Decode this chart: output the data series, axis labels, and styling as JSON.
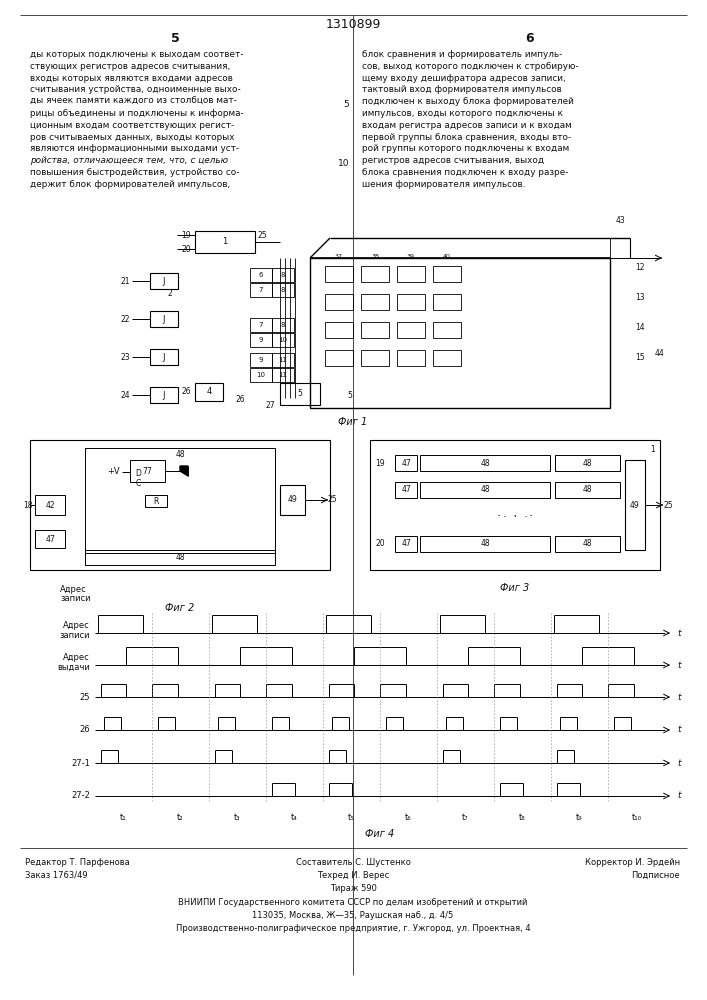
{
  "title": "1310899",
  "page_left": "5",
  "page_right": "6",
  "bg_color": "#ffffff",
  "text_color": "#111111",
  "left_column_text": [
    "ды которых подключены к выходам соответ-",
    "ствующих регистров адресов считывания,",
    "входы которых являются входами адресов",
    "считывания устройства, одноименные выхо-",
    "ды ячеек памяти каждого из столбцов мат-",
    "рицы объединены и подключены к информа-",
    "ционным входам соответствующих регист-",
    "ров считываемых данных, выходы которых",
    "являются информационными выходами уст-",
    "ройства, отличающееся тем, что, с целью",
    "повышения быстродействия, устройство со-",
    "держит блок формирователей импульсов,"
  ],
  "right_column_text": [
    "блок сравнения и формирователь импуль-",
    "сов, выход которого подключен к стробирую-",
    "щему входу дешифратора адресов записи,",
    "тактовый вход формирователя импульсов",
    "подключен к выходу блока формирователей",
    "импульсов, входы которого подключены к",
    "входам регистра адресов записи и к входам",
    "первой группы блока сравнения, входы вто-",
    "рой группы которого подключены к входам",
    "регистров адресов считывания, выход",
    "блока сравнения подключен к входу разре-",
    "шения формирователя импульсов."
  ],
  "footer_col1_l1": "Редактор Т. Парфенова",
  "footer_col1_l2": "Заказ 1763/49",
  "footer_col2_l1": "Составитель С. Шустенко",
  "footer_col2_l2": "Техред И. Верес",
  "footer_col2_l3": "Тираж 590",
  "footer_col3_l1": "Корректор И. Эрдейн",
  "footer_col3_l2": "Подписное",
  "footer_vniippi": "ВНИИПИ Государственного комитета СССР по делам изобретений и открытий",
  "footer_address": "113035, Москва, Ж—35, Раушская наб., д. 4/5",
  "footer_factory": "Производственно-полиграфическое предприятие, г. Ужгород, ул. Проектная, 4"
}
